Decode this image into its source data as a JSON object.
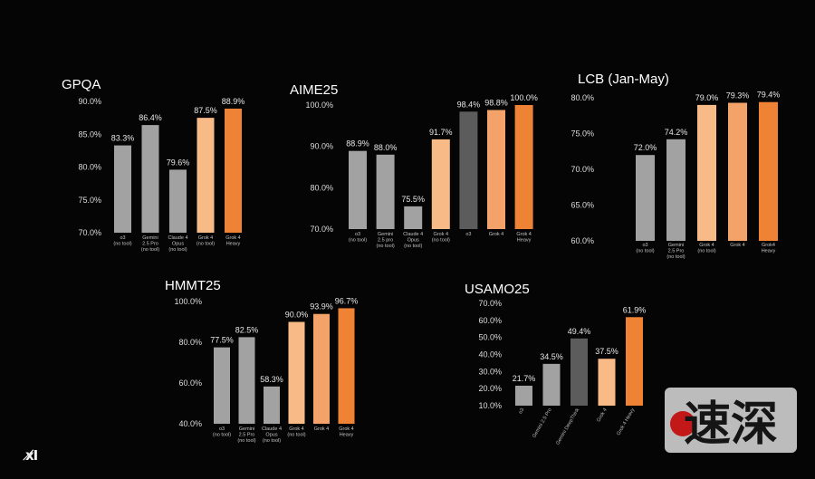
{
  "chart_data": [
    {
      "type": "bar",
      "title": "GPQA",
      "ylim": [
        70,
        90
      ],
      "yticks": [
        70,
        75,
        80,
        85,
        90
      ],
      "tick_format": "0.0%",
      "categories": [
        "o3\n(no tool)",
        "Gemini\n2.5 Pro\n(no tool)",
        "Claude 4\nOpus\n(no tool)",
        "Grok 4\n(no tool)",
        "Grok 4\nHeavy"
      ],
      "values": [
        83.3,
        86.4,
        79.6,
        87.5,
        88.9
      ],
      "value_labels": [
        "83.3%",
        "86.4%",
        "79.6%",
        "87.5%",
        "88.9%"
      ],
      "bar_colors": [
        "#a2a2a2",
        "#a2a2a2",
        "#a2a2a2",
        "#f8bb88",
        "#ee8335"
      ]
    },
    {
      "type": "bar",
      "title": "AIME25",
      "ylim": [
        70,
        100
      ],
      "yticks": [
        70,
        80,
        90,
        100
      ],
      "tick_format": "0.0%",
      "categories": [
        "o3\n(no tool)",
        "Gemini\n2.5 pro\n(no tool)",
        "Claude 4\nOpus\n(no tool)",
        "Grok 4\n(no tool)",
        "o3",
        "Grok 4",
        "Grok 4\nHeavy"
      ],
      "values": [
        88.9,
        88.0,
        75.5,
        91.7,
        98.4,
        98.8,
        100.0
      ],
      "value_labels": [
        "88.9%",
        "88.0%",
        "75.5%",
        "91.7%",
        "98.4%",
        "98.8%",
        "100.0%"
      ],
      "bar_colors": [
        "#a2a2a2",
        "#a2a2a2",
        "#a2a2a2",
        "#f8bb88",
        "#5c5c5c",
        "#f3a369",
        "#ee8335"
      ]
    },
    {
      "type": "bar",
      "title": "LCB (Jan-May)",
      "ylim": [
        60,
        80
      ],
      "yticks": [
        60,
        65,
        70,
        75,
        80
      ],
      "tick_format": "0.0%",
      "categories": [
        "o3\n(no tool)",
        "Gemini\n2.5 Pro\n(no tool)",
        "Grok 4\n(no tool)",
        "Grok 4",
        "Grok4\nHeavy"
      ],
      "values": [
        72.0,
        74.2,
        79.0,
        79.3,
        79.4
      ],
      "value_labels": [
        "72.0%",
        "74.2%",
        "79.0%",
        "79.3%",
        "79.4%"
      ],
      "bar_colors": [
        "#a2a2a2",
        "#a2a2a2",
        "#f8bb88",
        "#f3a369",
        "#ee8335"
      ]
    },
    {
      "type": "bar",
      "title": "HMMT25",
      "ylim": [
        40,
        100
      ],
      "yticks": [
        40,
        60,
        80,
        100
      ],
      "tick_format": "0.0%",
      "categories": [
        "o3\n(no tool)",
        "Gemini\n2.5 Pro\n(no tool)",
        "Claude 4\nOpus\n(no tool)",
        "Grok 4\n(no tool)",
        "Grok 4",
        "Grok 4\nHeavy"
      ],
      "values": [
        77.5,
        82.5,
        58.3,
        90.0,
        93.9,
        96.7
      ],
      "value_labels": [
        "77.5%",
        "82.5%",
        "58.3%",
        "90.0%",
        "93.9%",
        "96.7%"
      ],
      "bar_colors": [
        "#a2a2a2",
        "#a2a2a2",
        "#a2a2a2",
        "#f8bb88",
        "#f3a369",
        "#ee8335"
      ]
    },
    {
      "type": "bar",
      "title": "USAMO25",
      "ylim": [
        10,
        70
      ],
      "yticks": [
        10,
        20,
        30,
        40,
        50,
        60,
        70
      ],
      "tick_format": "0.0%",
      "rotated_labels": true,
      "categories": [
        "o3",
        "Gemini 2.5 Pro",
        "Gemini DeepThink",
        "Grok 4",
        "Grok 4 Heavy"
      ],
      "values": [
        21.7,
        34.5,
        49.4,
        37.5,
        61.9
      ],
      "value_labels": [
        "21.7%",
        "34.5%",
        "49.4%",
        "37.5%",
        "61.9%"
      ],
      "bar_colors": [
        "#a2a2a2",
        "#a2a2a2",
        "#5c5c5c",
        "#f8bb88",
        "#ee8335"
      ]
    }
  ],
  "logo_text": "x̸I",
  "watermark_text": "速深"
}
